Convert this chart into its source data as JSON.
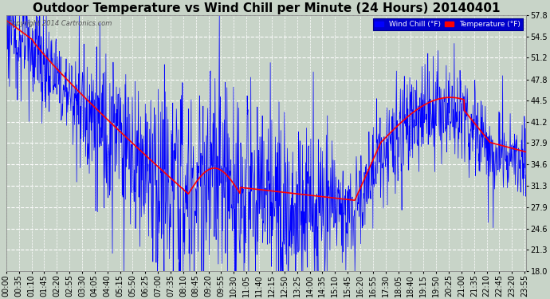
{
  "title": "Outdoor Temperature vs Wind Chill per Minute (24 Hours) 20140401",
  "copyright": "Copyright 2014 Cartronics.com",
  "legend_wind_chill": "Wind Chill (°F)",
  "legend_temperature": "Temperature (°F)",
  "ylim": [
    18.0,
    57.8
  ],
  "yticks": [
    18.0,
    21.3,
    24.6,
    27.9,
    31.3,
    34.6,
    37.9,
    41.2,
    44.5,
    47.8,
    51.2,
    54.5,
    57.8
  ],
  "bg_color": "#c8d4c8",
  "plot_bg_color": "#c8d4c8",
  "temp_color": "#ff0000",
  "wind_color": "#0000ff",
  "grid_color": "#ffffff",
  "title_fontsize": 11,
  "tick_fontsize": 7,
  "minutes_per_day": 1440,
  "x_tick_interval": 35,
  "legend_bg": "#0000cc",
  "legend_text_color": "#ffffff"
}
